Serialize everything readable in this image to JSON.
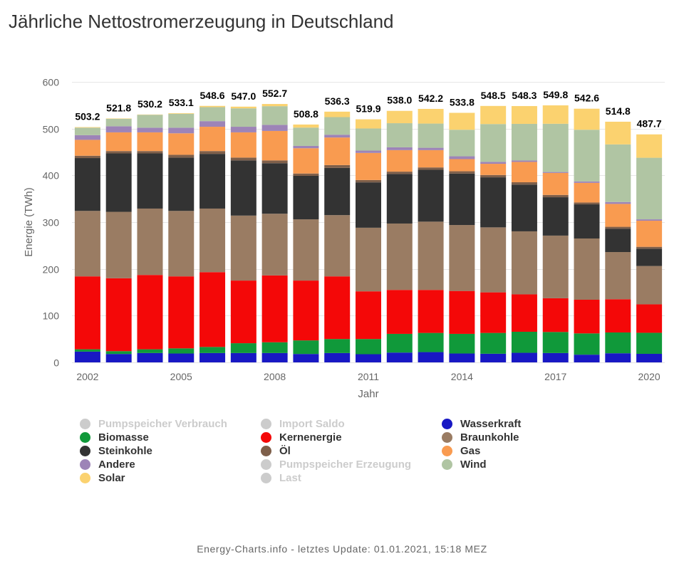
{
  "footer": "Energy-Charts.info - letztes Update: 01.01.2021, 15:18 MEZ",
  "chart_data": {
    "type": "bar",
    "stacked": true,
    "title": "Jährliche Nettostromerzeugung in Deutschland",
    "xlabel": "Jahr",
    "ylabel": "Energie (TWh)",
    "ylim": [
      0,
      600
    ],
    "yticks": [
      0,
      100,
      200,
      300,
      400,
      500,
      600
    ],
    "xticks": [
      2002,
      2005,
      2008,
      2011,
      2014,
      2017,
      2020
    ],
    "grid": true,
    "legend_position": "bottom",
    "categories": [
      2002,
      2003,
      2004,
      2005,
      2006,
      2007,
      2008,
      2009,
      2010,
      2011,
      2012,
      2013,
      2014,
      2015,
      2016,
      2017,
      2018,
      2019,
      2020
    ],
    "totals": [
      503.2,
      521.8,
      530.2,
      533.1,
      548.6,
      547.0,
      552.7,
      508.8,
      536.3,
      519.9,
      538.0,
      542.2,
      533.8,
      548.5,
      548.3,
      549.8,
      542.6,
      514.8,
      487.7
    ],
    "series": [
      {
        "name": "Pumpspeicher Verbrauch",
        "color": "#cccccc",
        "visible": false
      },
      {
        "name": "Import Saldo",
        "color": "#cccccc",
        "visible": false
      },
      {
        "name": "Wasserkraft",
        "color": "#1818c4",
        "visible": true,
        "values": [
          23,
          18,
          20,
          19,
          20,
          20,
          20,
          18,
          20,
          17.5,
          21,
          22,
          19,
          18.5,
          20.5,
          20,
          16.5,
          19.5,
          18.3
        ]
      },
      {
        "name": "Biomasse",
        "color": "#10993a",
        "visible": true,
        "values": [
          5,
          6,
          8,
          11,
          13,
          21,
          23,
          29,
          30,
          32.5,
          40,
          41,
          42,
          44.5,
          45,
          45,
          45.5,
          44.5,
          45
        ]
      },
      {
        "name": "Kernenergie",
        "color": "#f40808",
        "visible": true,
        "values": [
          156,
          156,
          159,
          154,
          160,
          134,
          143,
          128,
          134,
          102,
          94,
          92,
          91.8,
          86.8,
          80,
          72.2,
          72,
          71,
          60.9
        ]
      },
      {
        "name": "Braunkohle",
        "color": "#9a7c63",
        "visible": true,
        "values": [
          140,
          142,
          142,
          140,
          136,
          139,
          132,
          131,
          131,
          136,
          142,
          146,
          141,
          139,
          134.8,
          134,
          131,
          101,
          82
        ]
      },
      {
        "name": "Steinkohle",
        "color": "#333333",
        "visible": true,
        "values": [
          113,
          125,
          118,
          114,
          117,
          118,
          108,
          93,
          101,
          97,
          106,
          111,
          110,
          107,
          100,
          82,
          73,
          50,
          37
        ]
      },
      {
        "name": "Öl",
        "color": "#7e5f4a",
        "visible": true,
        "values": [
          5,
          5,
          5,
          6,
          6,
          6,
          6,
          5,
          6,
          5,
          5,
          5,
          5,
          5,
          5,
          5,
          4,
          4,
          4
        ]
      },
      {
        "name": "Gas",
        "color": "#f99b50",
        "visible": true,
        "values": [
          34,
          40,
          40,
          46,
          52,
          54,
          63,
          54,
          59,
          58,
          46,
          37,
          26,
          24,
          43.5,
          47,
          42,
          49,
          55.8
        ]
      },
      {
        "name": "Andere",
        "color": "#9d84b7",
        "visible": true,
        "values": [
          10,
          13,
          10,
          12,
          12,
          12,
          13,
          5,
          6,
          5,
          6,
          5,
          6,
          4,
          3,
          2,
          3,
          4,
          3
        ]
      },
      {
        "name": "Pumpspeicher Erzeugung",
        "color": "#cccccc",
        "visible": false
      },
      {
        "name": "Wind",
        "color": "#b0c5a3",
        "visible": true,
        "values": [
          16,
          16,
          27.6,
          29.8,
          30,
          39.4,
          40,
          39.2,
          37.6,
          47.3,
          51.6,
          51.8,
          56.8,
          81.0,
          78.4,
          103.2,
          110.6,
          123.3,
          131.7
        ]
      },
      {
        "name": "Solar",
        "color": "#fbd26f",
        "visible": true,
        "values": [
          1.2,
          0.8,
          0.6,
          1.3,
          2.6,
          3.6,
          4.7,
          6.6,
          11.7,
          19.6,
          26.4,
          31.4,
          36.2,
          38.7,
          38.1,
          39.4,
          45,
          48.5,
          50
        ]
      },
      {
        "name": "Last",
        "color": "#cccccc",
        "visible": false
      }
    ]
  }
}
